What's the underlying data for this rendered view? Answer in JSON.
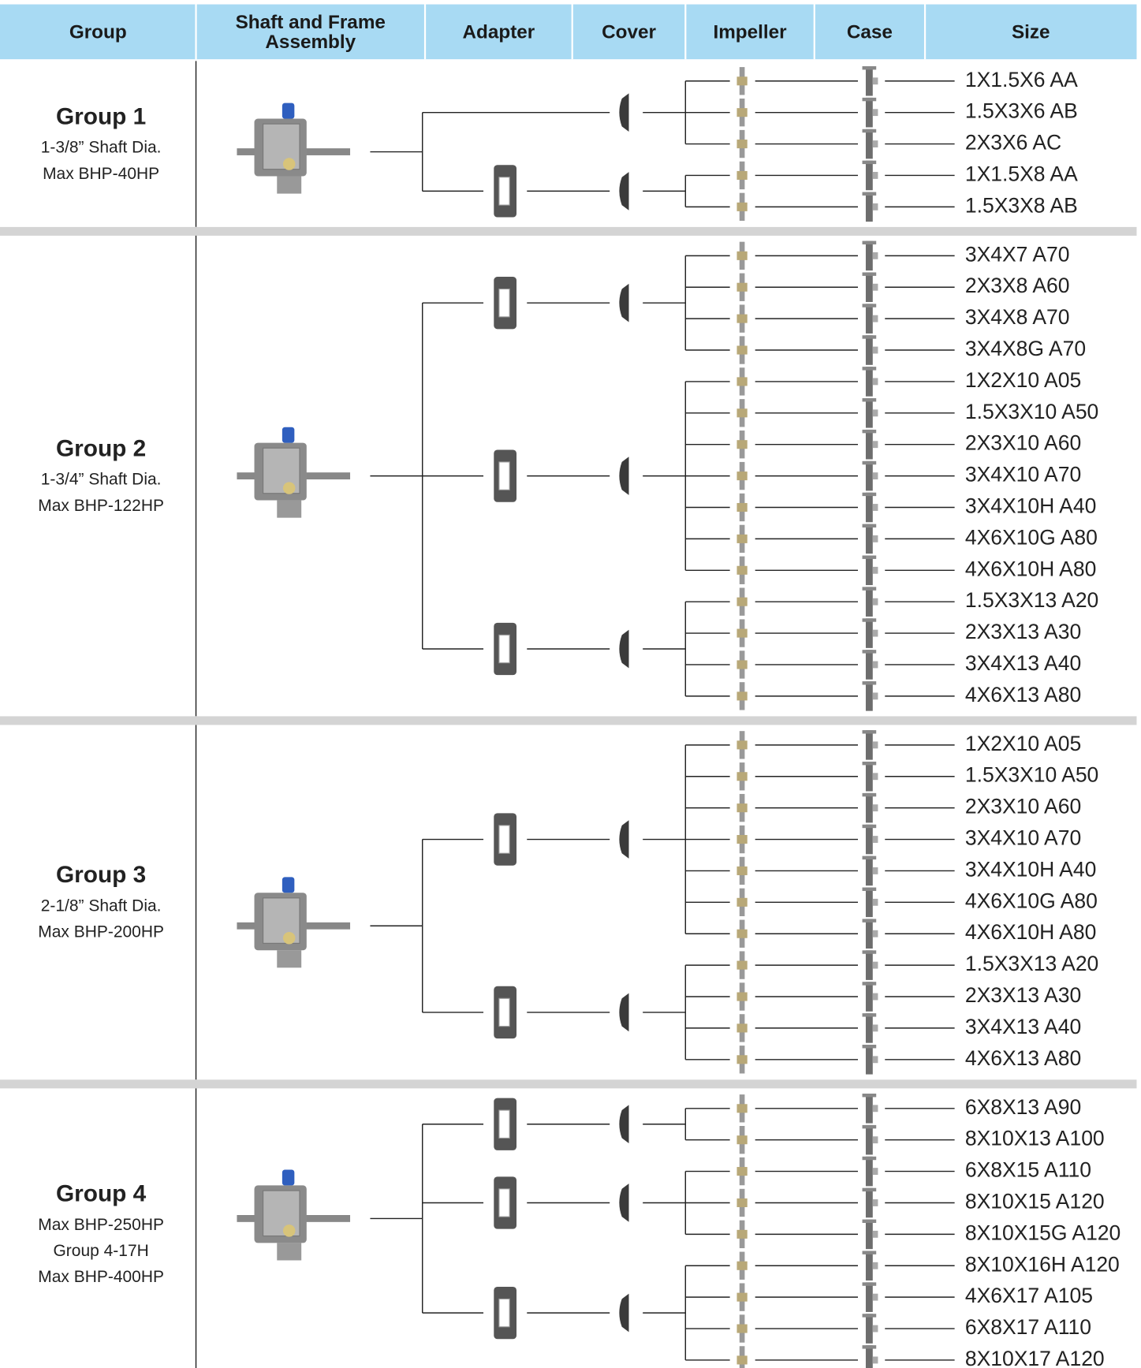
{
  "header": {
    "columns": [
      "Group",
      "Shaft and Frame Assembly",
      "Adapter",
      "Cover",
      "Impeller",
      "Case",
      "Size"
    ]
  },
  "groups": [
    {
      "title": "Group 1",
      "details": [
        "1-3/8” Shaft Dia.",
        "Max BHP-40HP"
      ],
      "branches": [
        [
          "1X1.5X6 AA",
          "1.5X3X6 AB",
          "2X3X6 AC"
        ],
        [
          "1X1.5X8 AA",
          "1.5X3X8 AB"
        ]
      ]
    },
    {
      "title": "Group 2",
      "details": [
        "1-3/4” Shaft Dia.",
        "Max BHP-122HP"
      ],
      "branches": [
        [
          "3X4X7 A70",
          "2X3X8 A60",
          "3X4X8 A70",
          "3X4X8G A70"
        ],
        [
          "1X2X10 A05",
          "1.5X3X10 A50",
          "2X3X10 A60",
          "3X4X10 A70",
          "3X4X10H A40",
          "4X6X10G A80",
          "4X6X10H A80"
        ],
        [
          "1.5X3X13 A20",
          "2X3X13 A30",
          "3X4X13 A40",
          "4X6X13 A80"
        ]
      ]
    },
    {
      "title": "Group 3",
      "details": [
        "2-1/8” Shaft Dia.",
        "Max BHP-200HP"
      ],
      "branches": [
        [
          "1X2X10 A05",
          "1.5X3X10 A50",
          "2X3X10 A60",
          "3X4X10 A70",
          "3X4X10H A40",
          "4X6X10G A80",
          "4X6X10H A80"
        ],
        [
          "1.5X3X13 A20",
          "2X3X13 A30",
          "3X4X13 A40",
          "4X6X13 A80"
        ]
      ]
    },
    {
      "title": "Group 4",
      "details": [
        "Max BHP-250HP",
        "Group 4-17H",
        "Max BHP-400HP"
      ],
      "branches": [
        [
          "6X8X13 A90",
          "8X10X13 A100"
        ],
        [
          "6X8X15 A110",
          "8X10X15 A120",
          "8X10X15G A120"
        ],
        [
          "8X10X16H A120",
          "4X6X17 A105",
          "6X8X17 A110",
          "8X10X17 A120"
        ]
      ]
    }
  ]
}
